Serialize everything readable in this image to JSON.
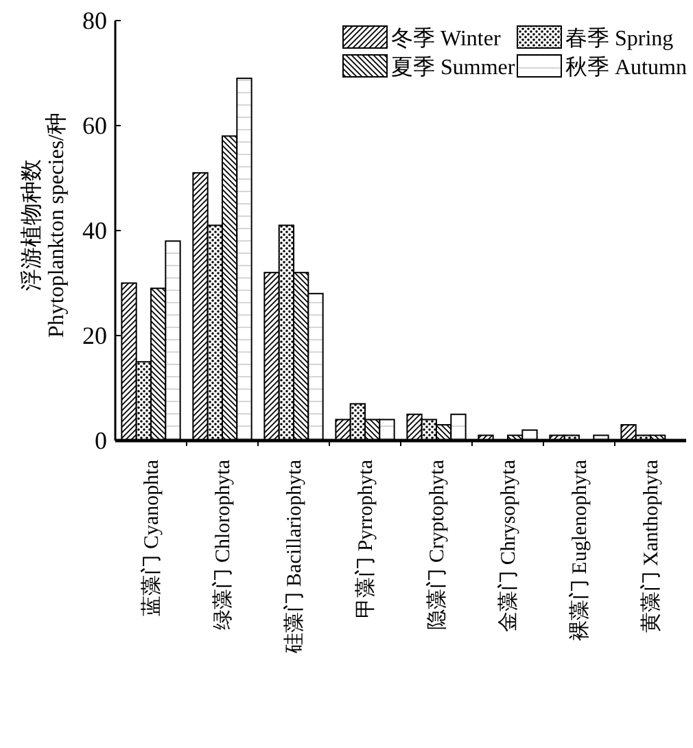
{
  "chart_data": {
    "type": "bar",
    "ylabel": "浮游植物种数\nPhytoplankton species/种",
    "categories": [
      "蓝藻门 Cyanophta",
      "绿藻门 Chlorophyta",
      "硅藻门 Bacillariophyta",
      "甲藻门 Pyrrophyta",
      "隐藻门 Cryptophyta",
      "金藻门 Chrysophyta",
      "裸藻门 Euglenophyta",
      "黄藻门 Xanthophyta"
    ],
    "series": [
      {
        "name": "冬季 Winter",
        "color": "#000000",
        "values": [
          30,
          51,
          32,
          4,
          5,
          1,
          1,
          3
        ]
      },
      {
        "name": "春季 Spring",
        "color": "#000000",
        "values": [
          15,
          41,
          41,
          7,
          4,
          0,
          1,
          1
        ]
      },
      {
        "name": "夏季 Summer",
        "color": "#000000",
        "values": [
          29,
          58,
          32,
          4,
          3,
          1,
          0,
          1
        ]
      },
      {
        "name": "秋季 Autumn",
        "color": "#000000",
        "values": [
          38,
          69,
          28,
          4,
          5,
          2,
          1,
          0
        ]
      }
    ],
    "ylim": [
      0,
      80
    ],
    "yticks": [
      0,
      20,
      40,
      60,
      80
    ],
    "legend": "top right"
  }
}
